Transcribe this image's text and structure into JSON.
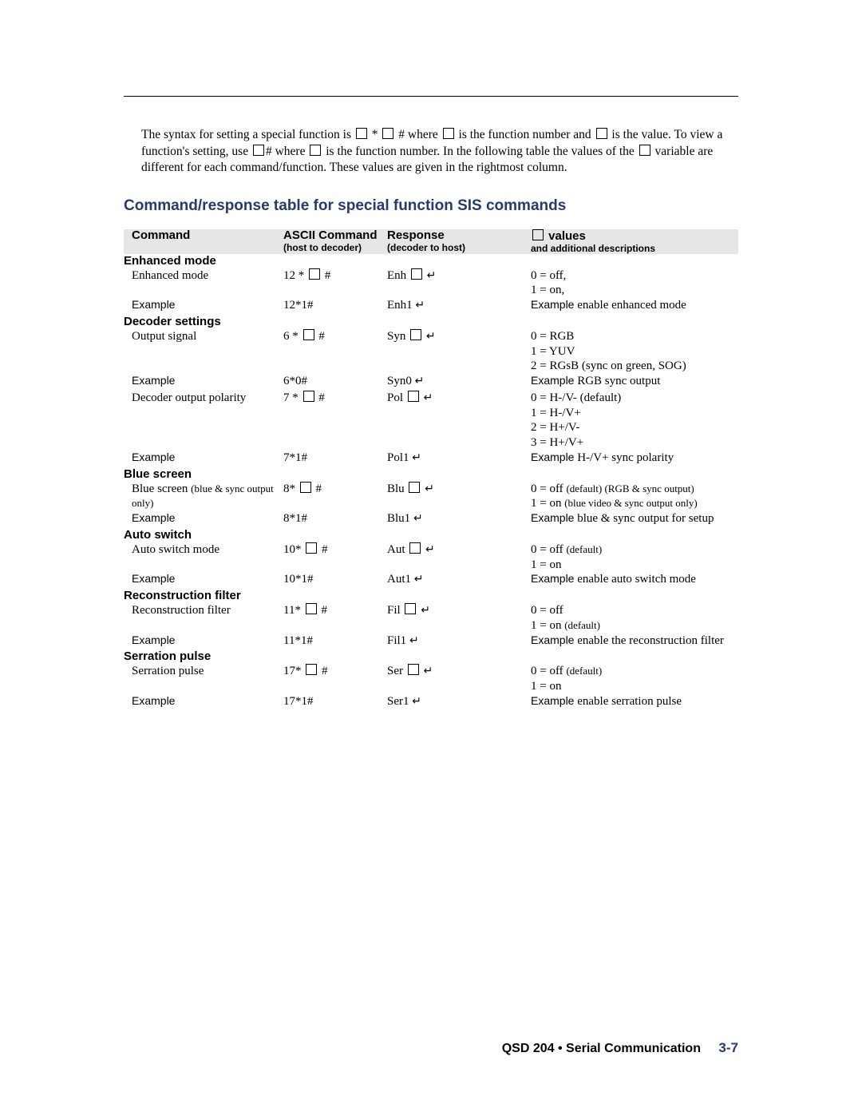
{
  "colors": {
    "heading": "#263a6e",
    "table_header_bg": "#e6e6e6",
    "rule": "#000000",
    "text": "#000000",
    "page_bg": "#ffffff"
  },
  "intro": {
    "seg1": "The syntax for setting  a special function is  ",
    "seg2": " * ",
    "seg3": " #  where  ",
    "seg4": "  is the function number and  ",
    "seg5": "  is the value.  To view a function's setting, use  ",
    "seg6": "#  where  ",
    "seg7": "  is the function number.  In the following table the values of the  ",
    "seg8": "  variable are different for each command/function.  These values are given in the rightmost column."
  },
  "section_title": "Command/response table for special function SIS commands",
  "headers": {
    "c1": "Command",
    "c2": "ASCII Command",
    "c2sub": "(host to decoder)",
    "c3": "Response",
    "c3sub": "(decoder to host)",
    "c4": " values",
    "c4sub": "and additional descriptions"
  },
  "groups": [
    {
      "label": "Enhanced mode",
      "rows": [
        {
          "c1": "Enhanced  mode",
          "c2a": "12 * ",
          "c2b": " #",
          "c3a": "Enh ",
          "c3ret": true,
          "val": [
            "0 = off,",
            "1 = on,"
          ]
        },
        {
          "example": true,
          "c1": "Example",
          "c2": "12*1#",
          "c3a": "Enh1 ",
          "c3ret": true,
          "valex": "Example",
          "valtxt": " enable enhanced mode"
        }
      ]
    },
    {
      "label": "Decoder settings",
      "rows": [
        {
          "c1": "Output signal",
          "c2a": "6 * ",
          "c2b": " #",
          "c3a": "Syn ",
          "c3ret": true,
          "val": [
            "0 = RGB",
            "1 = YUV",
            "2 = RGsB (sync on green, SOG)"
          ]
        },
        {
          "example": true,
          "c1": "Example",
          "c2": "6*0#",
          "c3a": "Syn0 ",
          "c3ret": true,
          "valex": "Example",
          "valtxt": " RGB sync output"
        },
        {
          "sep": true
        },
        {
          "c1": "Decoder output polarity",
          "c2a": "7 * ",
          "c2b": " #",
          "c3a": "Pol ",
          "c3ret": true,
          "val": [
            "0 = H-/V-  (default)",
            "1 = H-/V+",
            "2 = H+/V-",
            "3 = H+/V+"
          ]
        },
        {
          "example": true,
          "c1": "Example",
          "c2": "7*1#",
          "c3a": "Pol1 ",
          "c3ret": true,
          "valex": "Example",
          "valtxt": " H-/V+ sync polarity"
        }
      ]
    },
    {
      "label": "Blue screen",
      "rows": [
        {
          "c1": "Blue screen ",
          "c1small": "(blue & sync output only)",
          "c2a": "8* ",
          "c2b": " #",
          "c3a": "Blu ",
          "c3ret": true,
          "valpairs": [
            {
              "a": "0 = off ",
              "b": "(default) (RGB & sync output)"
            },
            {
              "a": "1 = on ",
              "b": "(blue video & sync output only)"
            }
          ]
        },
        {
          "example": true,
          "c1": "Example",
          "c2": "8*1#",
          "c3a": "Blu1 ",
          "c3ret": true,
          "valex": "Example",
          "valtxt": " blue & sync output for setup"
        }
      ]
    },
    {
      "label": "Auto switch",
      "rows": [
        {
          "c1": "Auto switch mode",
          "c2a": "10* ",
          "c2b": " #",
          "c3a": "Aut ",
          "c3ret": true,
          "valpairs": [
            {
              "a": "0 = off ",
              "b": "(default)"
            },
            {
              "a": "1 = on",
              "b": ""
            }
          ]
        },
        {
          "example": true,
          "c1": "Example",
          "c2": "10*1#",
          "c3a": "Aut1 ",
          "c3ret": true,
          "valex": "Example",
          "valtxt": " enable auto switch mode"
        }
      ]
    },
    {
      "label": "Reconstruction filter",
      "rows": [
        {
          "c1": "Reconstruction filter",
          "c2a": "11* ",
          "c2b": " #",
          "c3a": "Fil ",
          "c3ret": true,
          "valpairs": [
            {
              "a": "0 = off",
              "b": ""
            },
            {
              "a": "1 = on ",
              "b": "(default)"
            }
          ]
        },
        {
          "example": true,
          "c1": "Example",
          "c2": "11*1#",
          "c3a": "Fil1 ",
          "c3ret": true,
          "valex": "Example",
          "valtxt": " enable the reconstruction filter"
        }
      ]
    },
    {
      "label": "Serration pulse",
      "rows": [
        {
          "c1": "Serration pulse",
          "c2a": "17* ",
          "c2b": " #",
          "c3a": "Ser ",
          "c3ret": true,
          "valpairs": [
            {
              "a": "0 = off  ",
              "b": "(default)"
            },
            {
              "a": "1 = on",
              "b": ""
            }
          ]
        },
        {
          "example": true,
          "c1": "Example",
          "c2": "17*1#",
          "c3a": "Ser1 ",
          "c3ret": true,
          "valex": "Example",
          "valtxt": " enable serration pulse"
        }
      ]
    }
  ],
  "footer": {
    "label": "QSD 204 • Serial Communication",
    "page": "3-7"
  }
}
